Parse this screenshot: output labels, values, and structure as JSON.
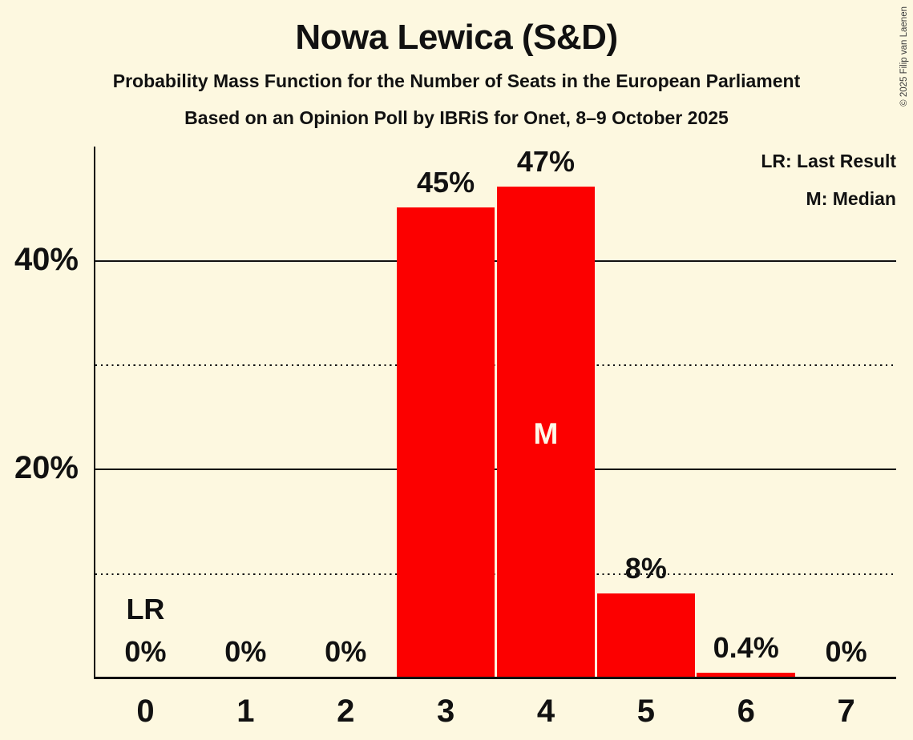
{
  "header": {
    "title": "Nowa Lewica (S&D)",
    "subtitle1": "Probability Mass Function for the Number of Seats in the European Parliament",
    "subtitle2": "Based on an Opinion Poll by IBRiS for Onet, 8–9 October 2025"
  },
  "copyright": "© 2025 Filip van Laenen",
  "legend": {
    "last_result": "LR: Last Result",
    "median": "M: Median"
  },
  "colors": {
    "background": "#FDF8E0",
    "bar": "#FC0000",
    "text": "#111111",
    "median_text": "#FDF8E8"
  },
  "chart_data": {
    "type": "bar",
    "title": "Nowa Lewica (S&D)",
    "xlabel": "Number of Seats in the European Parliament",
    "ylabel": "Probability",
    "categories": [
      "0",
      "1",
      "2",
      "3",
      "4",
      "5",
      "6",
      "7"
    ],
    "values": [
      0,
      0,
      0,
      45,
      47,
      8,
      0.4,
      0
    ],
    "value_labels": [
      "0%",
      "0%",
      "0%",
      "45%",
      "47%",
      "8%",
      "0.4%",
      "0%"
    ],
    "last_result_index": 0,
    "last_result_marker": "LR",
    "median_index": 4,
    "median_marker": "M",
    "y_ticks": [
      {
        "label": "40%",
        "value": 40
      },
      {
        "label": "20%",
        "value": 20
      }
    ],
    "solid_gridlines": [
      20,
      40
    ],
    "dotted_gridlines": [
      10,
      30
    ],
    "ylim": [
      0,
      50.8
    ],
    "grid": "on",
    "legend_position": "top-right"
  }
}
